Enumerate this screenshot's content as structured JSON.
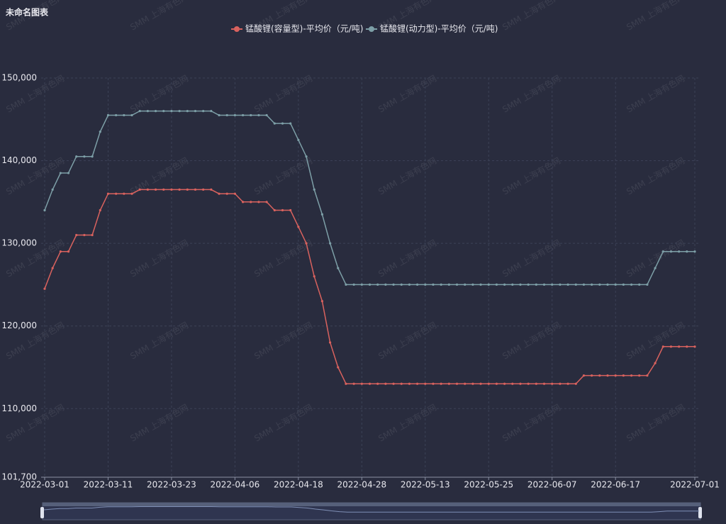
{
  "chart_data": {
    "type": "line",
    "title": "未命名图表",
    "watermark": "SMM 上海有色网",
    "categories": [
      "2022-03-01",
      null,
      null,
      null,
      null,
      null,
      null,
      null,
      "2022-03-11",
      null,
      null,
      null,
      null,
      null,
      null,
      null,
      "2022-03-23",
      null,
      null,
      null,
      null,
      null,
      null,
      null,
      "2022-04-06",
      null,
      null,
      null,
      null,
      null,
      null,
      null,
      "2022-04-18",
      null,
      null,
      null,
      null,
      null,
      null,
      null,
      "2022-04-28",
      null,
      null,
      null,
      null,
      null,
      null,
      null,
      "2022-05-13",
      null,
      null,
      null,
      null,
      null,
      null,
      null,
      "2022-05-25",
      null,
      null,
      null,
      null,
      null,
      null,
      null,
      "2022-06-07",
      null,
      null,
      null,
      null,
      null,
      null,
      null,
      "2022-06-17",
      null,
      null,
      null,
      null,
      null,
      null,
      null,
      null,
      null,
      "2022-07-01"
    ],
    "series": [
      {
        "name": "锰酸锂(容量型)-平均价（元/吨)",
        "color": "#d9625e",
        "values": [
          124500,
          127000,
          129000,
          129000,
          131000,
          131000,
          131000,
          134000,
          136000,
          136000,
          136000,
          136000,
          136500,
          136500,
          136500,
          136500,
          136500,
          136500,
          136500,
          136500,
          136500,
          136500,
          136000,
          136000,
          136000,
          135000,
          135000,
          135000,
          135000,
          134000,
          134000,
          134000,
          132000,
          130000,
          126000,
          123000,
          118000,
          115000,
          113000,
          113000,
          113000,
          113000,
          113000,
          113000,
          113000,
          113000,
          113000,
          113000,
          113000,
          113000,
          113000,
          113000,
          113000,
          113000,
          113000,
          113000,
          113000,
          113000,
          113000,
          113000,
          113000,
          113000,
          113000,
          113000,
          113000,
          113000,
          113000,
          113000,
          114000,
          114000,
          114000,
          114000,
          114000,
          114000,
          114000,
          114000,
          114000,
          115500,
          117500,
          117500,
          117500,
          117500,
          117500
        ]
      },
      {
        "name": "锰酸锂(动力型)-平均价（元/吨)",
        "color": "#7d9fa7",
        "values": [
          134000,
          136500,
          138500,
          138500,
          140500,
          140500,
          140500,
          143500,
          145500,
          145500,
          145500,
          145500,
          146000,
          146000,
          146000,
          146000,
          146000,
          146000,
          146000,
          146000,
          146000,
          146000,
          145500,
          145500,
          145500,
          145500,
          145500,
          145500,
          145500,
          144500,
          144500,
          144500,
          142500,
          140500,
          136500,
          133500,
          130000,
          127000,
          125000,
          125000,
          125000,
          125000,
          125000,
          125000,
          125000,
          125000,
          125000,
          125000,
          125000,
          125000,
          125000,
          125000,
          125000,
          125000,
          125000,
          125000,
          125000,
          125000,
          125000,
          125000,
          125000,
          125000,
          125000,
          125000,
          125000,
          125000,
          125000,
          125000,
          125000,
          125000,
          125000,
          125000,
          125000,
          125000,
          125000,
          125000,
          125000,
          127000,
          129000,
          129000,
          129000,
          129000,
          129000
        ]
      }
    ],
    "ylim": [
      101700,
      150000
    ],
    "yticks": [
      {
        "value": 101700,
        "label": "101,700"
      },
      {
        "value": 110000,
        "label": "110,000"
      },
      {
        "value": 120000,
        "label": "120,000"
      },
      {
        "value": 130000,
        "label": "130,000"
      },
      {
        "value": 140000,
        "label": "140,000"
      },
      {
        "value": 150000,
        "label": "150,000"
      }
    ],
    "grid": true,
    "legend": "top"
  }
}
